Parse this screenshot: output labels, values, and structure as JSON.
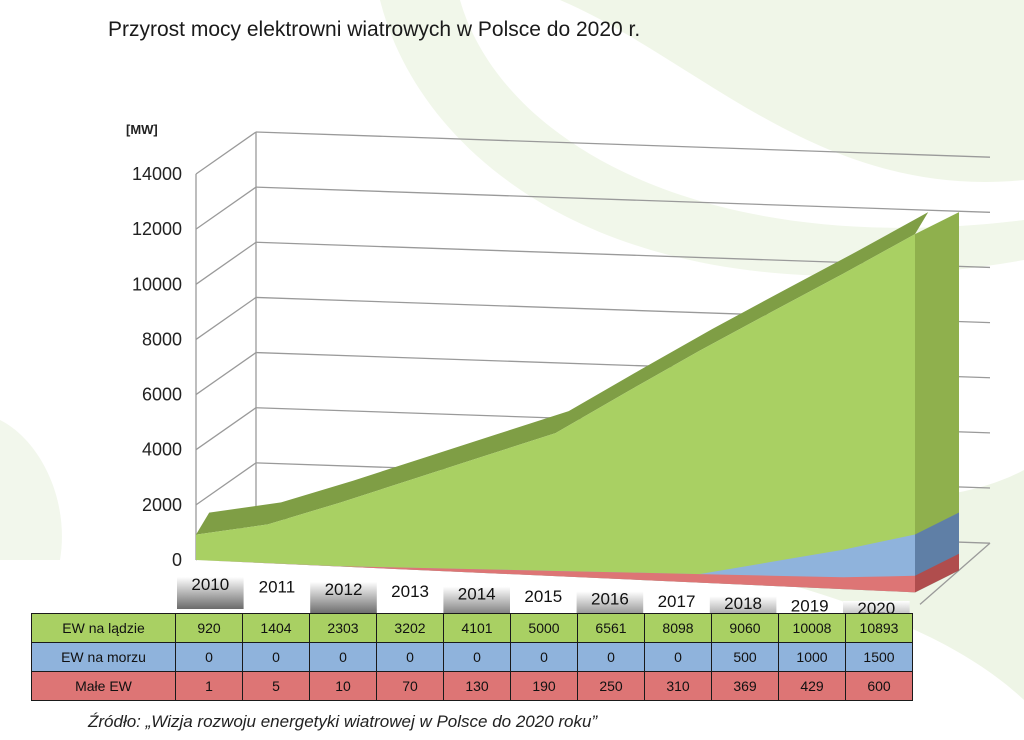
{
  "title": "Przyrost mocy elektrowni wiatrowych w Polsce do 2020 r.",
  "source": "Źródło: „Wizja rozwoju energetyki wiatrowej w Polsce do 2020 roku”",
  "colors": {
    "land_front": "#a9d063",
    "land_top": "#7f9e45",
    "land_side": "#8fb04d",
    "sea_front": "#8fb3dc",
    "sea_side": "#5f7fa6",
    "small_front": "#dd7575",
    "small_side": "#b04d4d"
  },
  "chart_data": {
    "type": "area",
    "title": "Przyrost mocy elektrowni wiatrowych w Polsce do 2020 r.",
    "ylabel": "[MW]",
    "ylim": [
      0,
      14000
    ],
    "yticks": [
      0,
      2000,
      4000,
      6000,
      8000,
      10000,
      12000,
      14000
    ],
    "grid": true,
    "categories": [
      "2010",
      "2011",
      "2012",
      "2013",
      "2014",
      "2015",
      "2016",
      "2017",
      "2018",
      "2019",
      "2020"
    ],
    "series": [
      {
        "name": "EW na lądzie",
        "values": [
          920,
          1404,
          2303,
          3202,
          4101,
          5000,
          6561,
          8098,
          9060,
          10008,
          10893
        ]
      },
      {
        "name": "EW na morzu",
        "values": [
          0,
          0,
          0,
          0,
          0,
          0,
          0,
          0,
          500,
          1000,
          1500
        ]
      },
      {
        "name": "Małe EW",
        "values": [
          1,
          5,
          10,
          70,
          130,
          190,
          250,
          310,
          369,
          429,
          600
        ]
      }
    ]
  }
}
